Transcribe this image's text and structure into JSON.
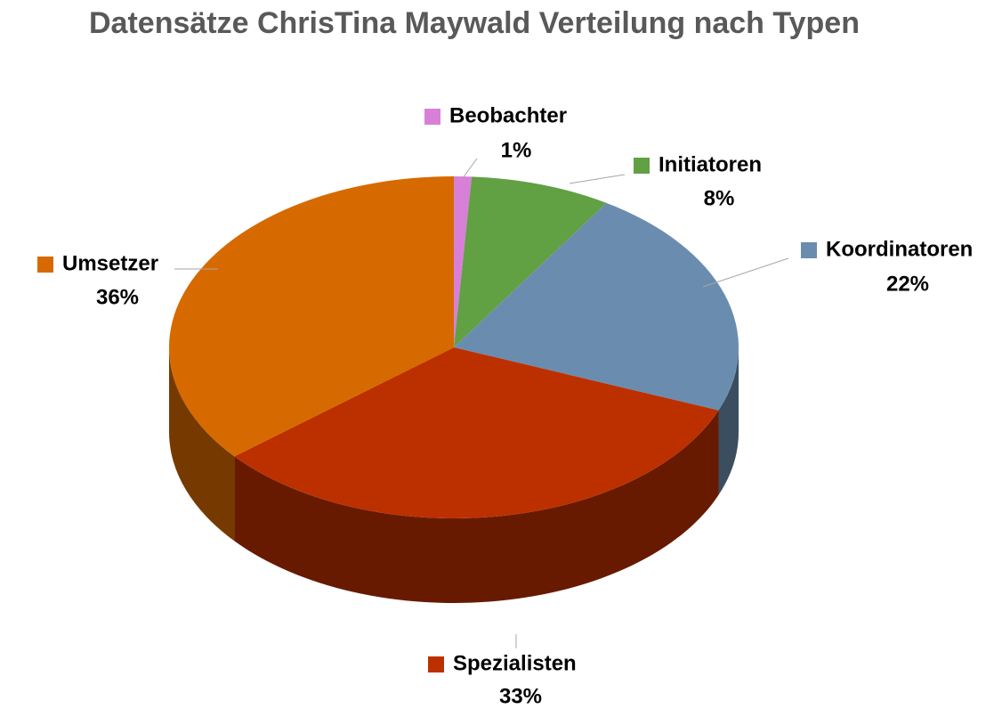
{
  "chart_data": {
    "type": "pie3d",
    "title": "Datensätze ChrisTina Maywald Verteilung nach Typen",
    "categories": [
      "Beobachter",
      "Initiatoren",
      "Koordinatoren",
      "Spezialisten",
      "Umsetzer"
    ],
    "values": [
      1,
      8,
      22,
      33,
      36
    ],
    "value_labels": [
      "1%",
      "8%",
      "22%",
      "33%",
      "36%"
    ],
    "colors": [
      "#d87fd8",
      "#62a044",
      "#6a8daf",
      "#bc3000",
      "#d66a00"
    ]
  }
}
